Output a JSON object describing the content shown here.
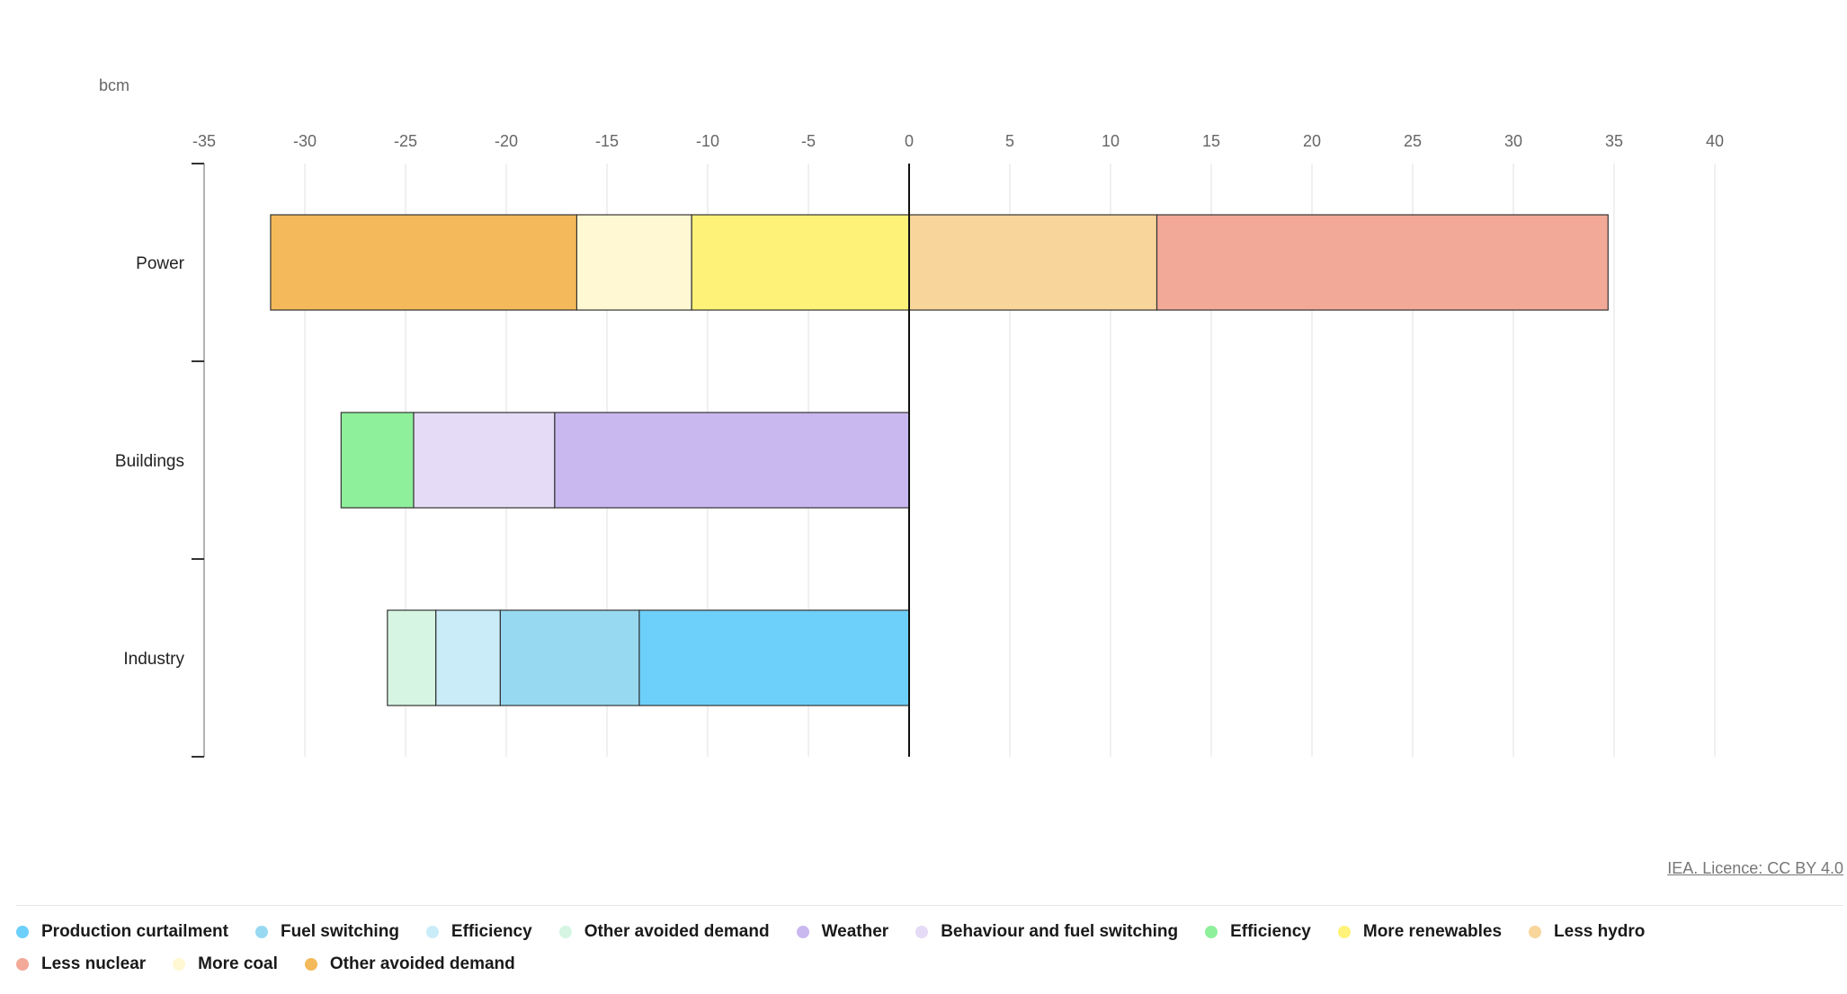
{
  "chart_data": {
    "type": "bar",
    "orientation": "horizontal",
    "stacked": true,
    "unit_label": "bcm",
    "categories": [
      "Power",
      "Buildings",
      "Industry"
    ],
    "x_ticks": [
      -35,
      -30,
      -25,
      -20,
      -15,
      -10,
      -5,
      0,
      5,
      10,
      15,
      20,
      25,
      30,
      35,
      40
    ],
    "xlim": [
      -35,
      40
    ],
    "grid": true,
    "legend_position": "bottom",
    "series": [
      {
        "name": "Production curtailment",
        "color": "#6dd0fa",
        "values": [
          0,
          0,
          -13.4
        ]
      },
      {
        "name": "Fuel switching",
        "color": "#98d9f2",
        "values": [
          0,
          0,
          -6.9
        ]
      },
      {
        "name": "Efficiency",
        "color": "#c9ecf8",
        "values": [
          0,
          0,
          -3.2
        ]
      },
      {
        "name": "Other avoided demand",
        "color": "#d6f5e2",
        "values": [
          0,
          0,
          -2.4
        ]
      },
      {
        "name": "Weather",
        "color": "#c9b8f0",
        "values": [
          0,
          -17.6,
          0
        ]
      },
      {
        "name": "Behaviour and fuel switching",
        "color": "#e5dbf6",
        "values": [
          0,
          -7.0,
          0
        ]
      },
      {
        "name": "Efficiency",
        "color": "#8ff09b",
        "values": [
          0,
          -3.6,
          0
        ]
      },
      {
        "name": "More renewables",
        "color": "#fef278",
        "values": [
          -10.8,
          0,
          0
        ]
      },
      {
        "name": "Less hydro",
        "color": "#f8d59b",
        "values": [
          12.3,
          0,
          0
        ]
      },
      {
        "name": "Less nuclear",
        "color": "#f3a998",
        "values": [
          22.4,
          0,
          0
        ]
      },
      {
        "name": "More coal",
        "color": "#fff8d3",
        "values": [
          -5.7,
          0,
          0
        ]
      },
      {
        "name": "Other avoided demand",
        "color": "#f3b95a",
        "values": [
          -15.2,
          0,
          0
        ]
      }
    ]
  },
  "credit": "IEA. Licence: CC BY 4.0"
}
